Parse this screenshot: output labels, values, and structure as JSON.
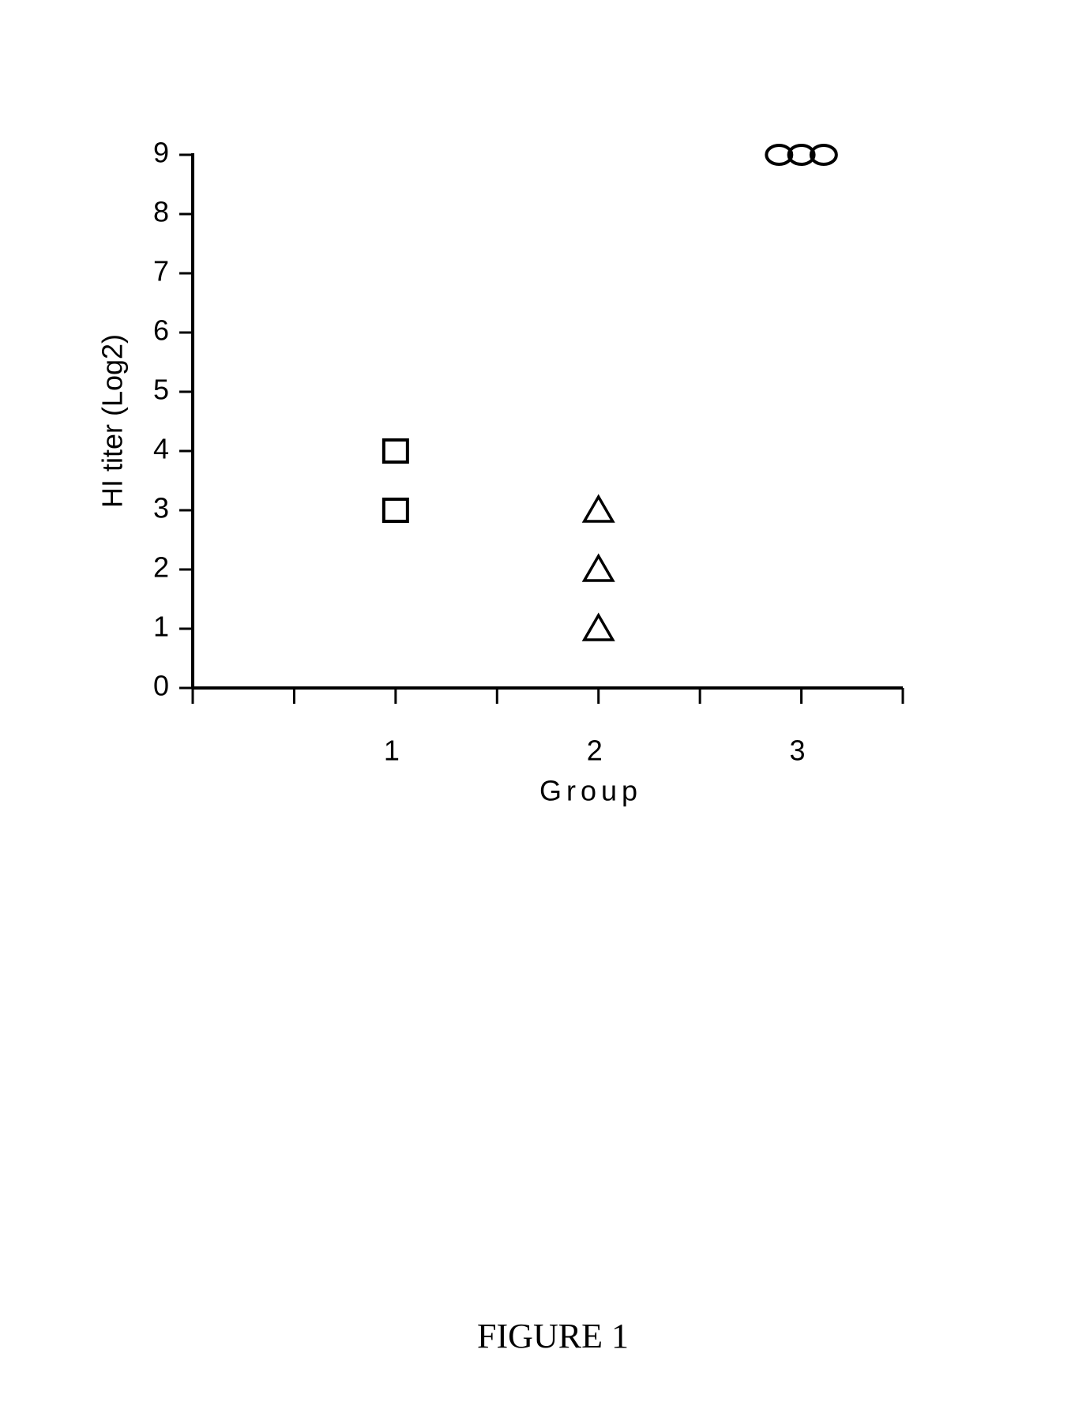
{
  "chart_data": {
    "type": "scatter",
    "caption": "FIGURE 1",
    "x_label": "Group",
    "y_label": "HI titer (Log2)",
    "xlim": [
      0,
      3.5
    ],
    "xticks": [
      1,
      2,
      3
    ],
    "xminor_ticks": [
      0,
      0.5,
      1.5,
      2.5,
      3.5
    ],
    "ylim": [
      0,
      9
    ],
    "yticks": [
      0,
      1,
      2,
      3,
      4,
      5,
      6,
      7,
      8,
      9
    ],
    "grid": false,
    "series": [
      {
        "marker": "square",
        "color": "#000000",
        "x": [
          1,
          1
        ],
        "y": [
          4,
          3
        ]
      },
      {
        "marker": "triangle",
        "color": "#000000",
        "x": [
          2,
          2,
          2
        ],
        "y": [
          3,
          2,
          1
        ]
      },
      {
        "marker": "circle",
        "color": "#000000",
        "x": [
          2.89,
          3,
          3.11
        ],
        "y": [
          9,
          9,
          9
        ]
      }
    ]
  }
}
